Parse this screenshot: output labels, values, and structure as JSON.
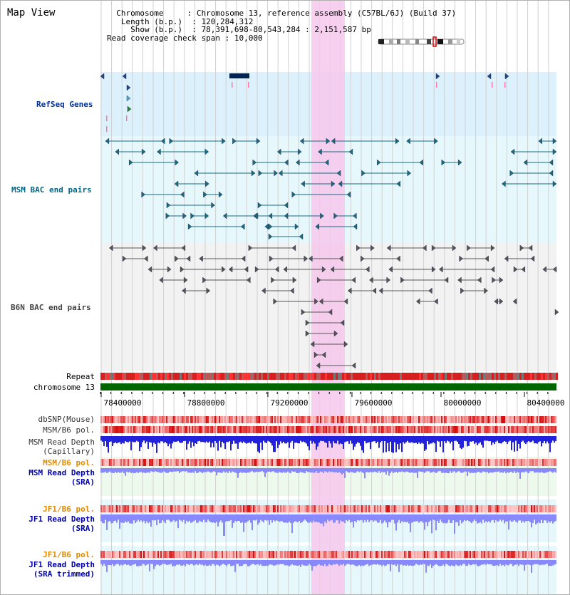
{
  "title": "Map View",
  "info": {
    "chromosome_label": "Chromosome",
    "chromosome_value": "Chromosome 13, reference assembly (C57BL/6J) (Build 37)",
    "length_label": "Length (b.p.)",
    "length_value": "120,284,312",
    "show_label": "Show (b.p.)",
    "show_value": "78,391,698-80,543,284 : 2,151,587 bp",
    "coverage_label": "Read coverage check span",
    "coverage_value": "10,000"
  },
  "tracks": {
    "refseq": "RefSeq Genes",
    "msm_bac": "MSM BAC end pairs",
    "b6n_bac": "B6N BAC end pairs",
    "repeat": "Repeat",
    "chromosome": "chromosome 13",
    "dbsnp": "dbSNP(Mouse)",
    "msm_b6_pol_1": "MSM/B6 pol.",
    "msm_depth_cap_1": "MSM Read Depth",
    "msm_depth_cap_2": "(Capillary)",
    "msm_b6_pol_2": "MSM/B6 pol.",
    "msm_depth_sra_1": "MSM Read Depth",
    "msm_depth_sra_2": "(SRA)",
    "jf1_b6_pol_1": "JF1/B6 pol.",
    "jf1_depth_sra_1": "JF1 Read Depth",
    "jf1_depth_sra_2": "(SRA)",
    "jf1_b6_pol_2": "JF1/B6 pol.",
    "jf1_depth_trim_1": "JF1 Read Depth",
    "jf1_depth_trim_2": "(SRA trimmed)"
  },
  "axis": {
    "ticks": [
      "78400000",
      "78800000",
      "79200000",
      "79600000",
      "80000000",
      "80400000"
    ]
  },
  "colors": {
    "refseq_label": "#003399",
    "msm_label": "#006688",
    "b6n_label": "#444444",
    "pol_label": "#e08a00",
    "depth_label": "#0000aa",
    "highlight": "#f7c8ec",
    "chrom_bar": "#006600",
    "depth_capillary": "#2222dd",
    "depth_sra": "#8888ff"
  }
}
